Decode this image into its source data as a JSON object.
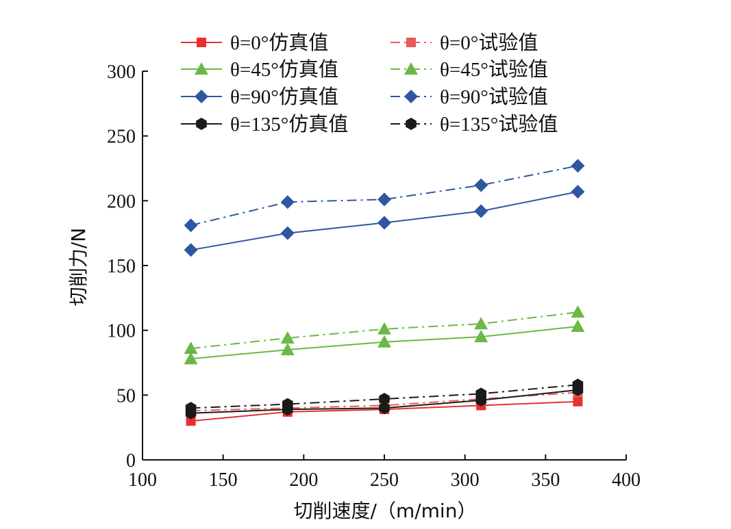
{
  "chart_data": {
    "type": "line",
    "title": "",
    "xlabel": "切削速度/（m/min）",
    "ylabel": "切削力/N",
    "xlim": [
      100,
      400
    ],
    "ylim": [
      0,
      300
    ],
    "xticks": [
      "100",
      "150",
      "200",
      "250",
      "300",
      "350",
      "400"
    ],
    "yticks": [
      "0",
      "50",
      "100",
      "150",
      "200",
      "250",
      "300"
    ],
    "grid": false,
    "legend_position": "top",
    "x": [
      130,
      190,
      250,
      310,
      370
    ],
    "series": [
      {
        "name": "θ=0°仿真值",
        "values": [
          30,
          37,
          39,
          42,
          45
        ],
        "color": "#e8302f",
        "marker": "square",
        "dash": "solid"
      },
      {
        "name": "θ=0°试验值",
        "values": [
          38,
          40,
          42,
          47,
          52
        ],
        "color": "#e85a5a",
        "marker": "square",
        "dash": "dashdot"
      },
      {
        "name": "θ=45°仿真值",
        "values": [
          78,
          85,
          91,
          95,
          103
        ],
        "color": "#6ab845",
        "marker": "triangle",
        "dash": "solid"
      },
      {
        "name": "θ=45°试验值",
        "values": [
          86,
          94,
          101,
          105,
          114
        ],
        "color": "#6ab845",
        "marker": "triangle",
        "dash": "dashdot"
      },
      {
        "name": "θ=90°仿真值",
        "values": [
          162,
          175,
          183,
          192,
          207
        ],
        "color": "#2f56a0",
        "marker": "diamond",
        "dash": "solid"
      },
      {
        "name": "θ=90°试验值",
        "values": [
          181,
          199,
          201,
          212,
          227
        ],
        "color": "#2f56a0",
        "marker": "diamond",
        "dash": "dashdot"
      },
      {
        "name": "θ=135°仿真值",
        "values": [
          36,
          39,
          40,
          46,
          54
        ],
        "color": "#1a1a1a",
        "marker": "hexagon",
        "dash": "solid"
      },
      {
        "name": "θ=135°试验值",
        "values": [
          40,
          43,
          47,
          51,
          58
        ],
        "color": "#1a1a1a",
        "marker": "hexagon",
        "dash": "dashdot"
      }
    ]
  }
}
